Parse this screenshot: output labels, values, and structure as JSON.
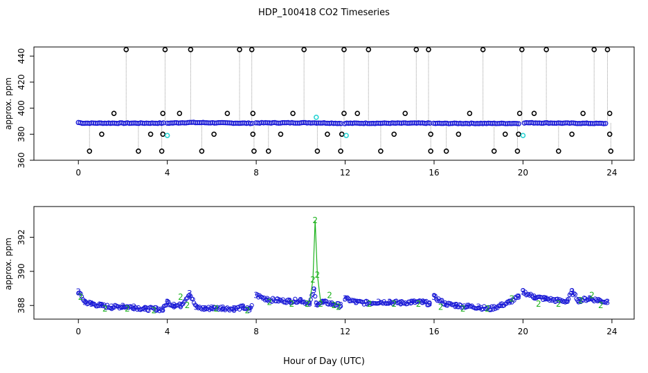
{
  "title": "HDP_100418  CO2 Timeseries",
  "xlabel": "Hour of Day (UTC)",
  "chart_data": [
    {
      "type": "scatter",
      "ylabel": "approx. ppm",
      "xlim": [
        -2,
        25
      ],
      "ylim": [
        360,
        447
      ],
      "xticks": [
        0,
        4,
        8,
        12,
        16,
        20,
        24
      ],
      "yticks": [
        360,
        380,
        400,
        420,
        440
      ],
      "baseline": {
        "x": [
          0,
          0.2,
          3.8,
          4.0,
          5.0,
          7.8,
          8.0,
          10.5,
          11.5,
          11.9,
          12.0,
          15.8,
          16.0,
          19.8,
          20.0,
          23.8
        ],
        "y": [
          389,
          388.5,
          388.5,
          388.5,
          389,
          388.4,
          388.7,
          388.8,
          388.5,
          388.2,
          388.4,
          388.5,
          388.3,
          388.3,
          388.8,
          388.2
        ]
      },
      "high_outliers": [
        2.15,
        3.9,
        5.05,
        7.25,
        7.8,
        10.15,
        11.95,
        13.05,
        15.2,
        15.75,
        18.2,
        19.95,
        21.05,
        23.2,
        23.8
      ],
      "low_outliers": [
        0.5,
        2.7,
        3.75,
        5.55,
        7.9,
        8.55,
        10.75,
        11.8,
        13.6,
        15.85,
        16.55,
        18.7,
        19.75,
        21.6,
        23.95
      ],
      "mid_outliers": {
        "x": [
          1.05,
          3.25,
          3.8,
          6.1,
          7.85,
          9.1,
          11.2,
          11.85,
          14.2,
          15.85,
          17.1,
          19.2,
          19.8,
          22.2,
          23.9
        ],
        "y": [
          380,
          380,
          380,
          380,
          380,
          380,
          380,
          380,
          380,
          380,
          380,
          380,
          380,
          380,
          380
        ]
      },
      "upper_outliers": {
        "x": [
          1.6,
          3.8,
          4.55,
          6.7,
          7.85,
          9.65,
          11.95,
          12.55,
          14.7,
          17.6,
          19.85,
          20.5,
          22.7,
          23.9
        ],
        "y": [
          396,
          396,
          396,
          396,
          396,
          396,
          396,
          396,
          396,
          396,
          396,
          396,
          396,
          396
        ]
      },
      "cyan_points": {
        "x": [
          4.0,
          10.7,
          12.05,
          20.0
        ],
        "y": [
          379,
          393,
          379,
          379
        ]
      },
      "high_value": 445,
      "low_value": 367
    },
    {
      "type": "scatter",
      "ylabel": "approx. ppm",
      "xlim": [
        -2,
        25
      ],
      "ylim": [
        387.2,
        393.8
      ],
      "xticks": [
        0,
        4,
        8,
        12,
        16,
        20,
        24
      ],
      "yticks": [
        388,
        390,
        392
      ],
      "marker_labels": [
        "3",
        "2"
      ],
      "series": [
        {
          "marker": "3",
          "x": [
            0.0,
            0.3,
            0.6,
            1.0,
            1.5,
            2.0,
            2.5,
            3.0,
            3.5,
            3.8,
            4.0,
            4.3,
            4.6,
            5.0,
            5.3,
            5.7,
            6.0,
            6.5,
            7.0,
            7.4,
            7.7,
            8.0,
            8.5,
            9.0,
            9.5,
            10.0,
            10.4,
            10.6,
            10.7,
            11.0,
            11.4,
            11.8,
            12.0,
            12.5,
            13.0,
            13.5,
            14.0,
            14.5,
            15.0,
            15.5,
            15.8,
            16.0,
            16.5,
            17.0,
            17.5,
            18.0,
            18.5,
            19.0,
            19.4,
            19.8,
            20.0,
            20.5,
            21.0,
            21.5,
            22.0,
            22.2,
            22.5,
            23.0,
            23.4,
            23.8
          ],
          "y": [
            388.8,
            388.2,
            388.1,
            388.0,
            387.9,
            387.95,
            387.9,
            387.8,
            387.8,
            387.75,
            388.2,
            388.0,
            388.0,
            388.7,
            387.9,
            387.8,
            387.85,
            387.85,
            387.8,
            387.9,
            387.75,
            388.6,
            388.35,
            388.3,
            388.25,
            388.3,
            388.1,
            388.9,
            388.1,
            388.2,
            388.1,
            388.0,
            388.4,
            388.2,
            388.15,
            388.2,
            388.2,
            388.15,
            388.2,
            388.2,
            388.1,
            388.5,
            388.1,
            388.0,
            387.95,
            387.9,
            387.8,
            388.0,
            388.2,
            388.5,
            388.8,
            388.5,
            388.4,
            388.3,
            388.25,
            388.8,
            388.3,
            388.4,
            388.3,
            388.2
          ]
        },
        {
          "marker": "2",
          "x": [
            0.1,
            1.2,
            2.2,
            3.4,
            4.6,
            4.9,
            6.2,
            7.6,
            8.6,
            9.6,
            10.3,
            10.55,
            10.65,
            10.75,
            10.9,
            11.3,
            11.5,
            11.7,
            13.1,
            14.2,
            15.3,
            16.3,
            17.3,
            18.4,
            19.5,
            20.7,
            21.6,
            22.6,
            23.1,
            23.5
          ],
          "y": [
            388.5,
            387.8,
            387.8,
            387.7,
            388.5,
            388.0,
            387.8,
            387.7,
            388.2,
            388.1,
            388.1,
            389.5,
            393.0,
            389.8,
            388.1,
            388.6,
            388.0,
            387.9,
            388.1,
            388.1,
            388.1,
            387.9,
            387.8,
            387.8,
            388.4,
            388.1,
            388.1,
            388.3,
            388.6,
            388.0
          ]
        }
      ]
    }
  ]
}
